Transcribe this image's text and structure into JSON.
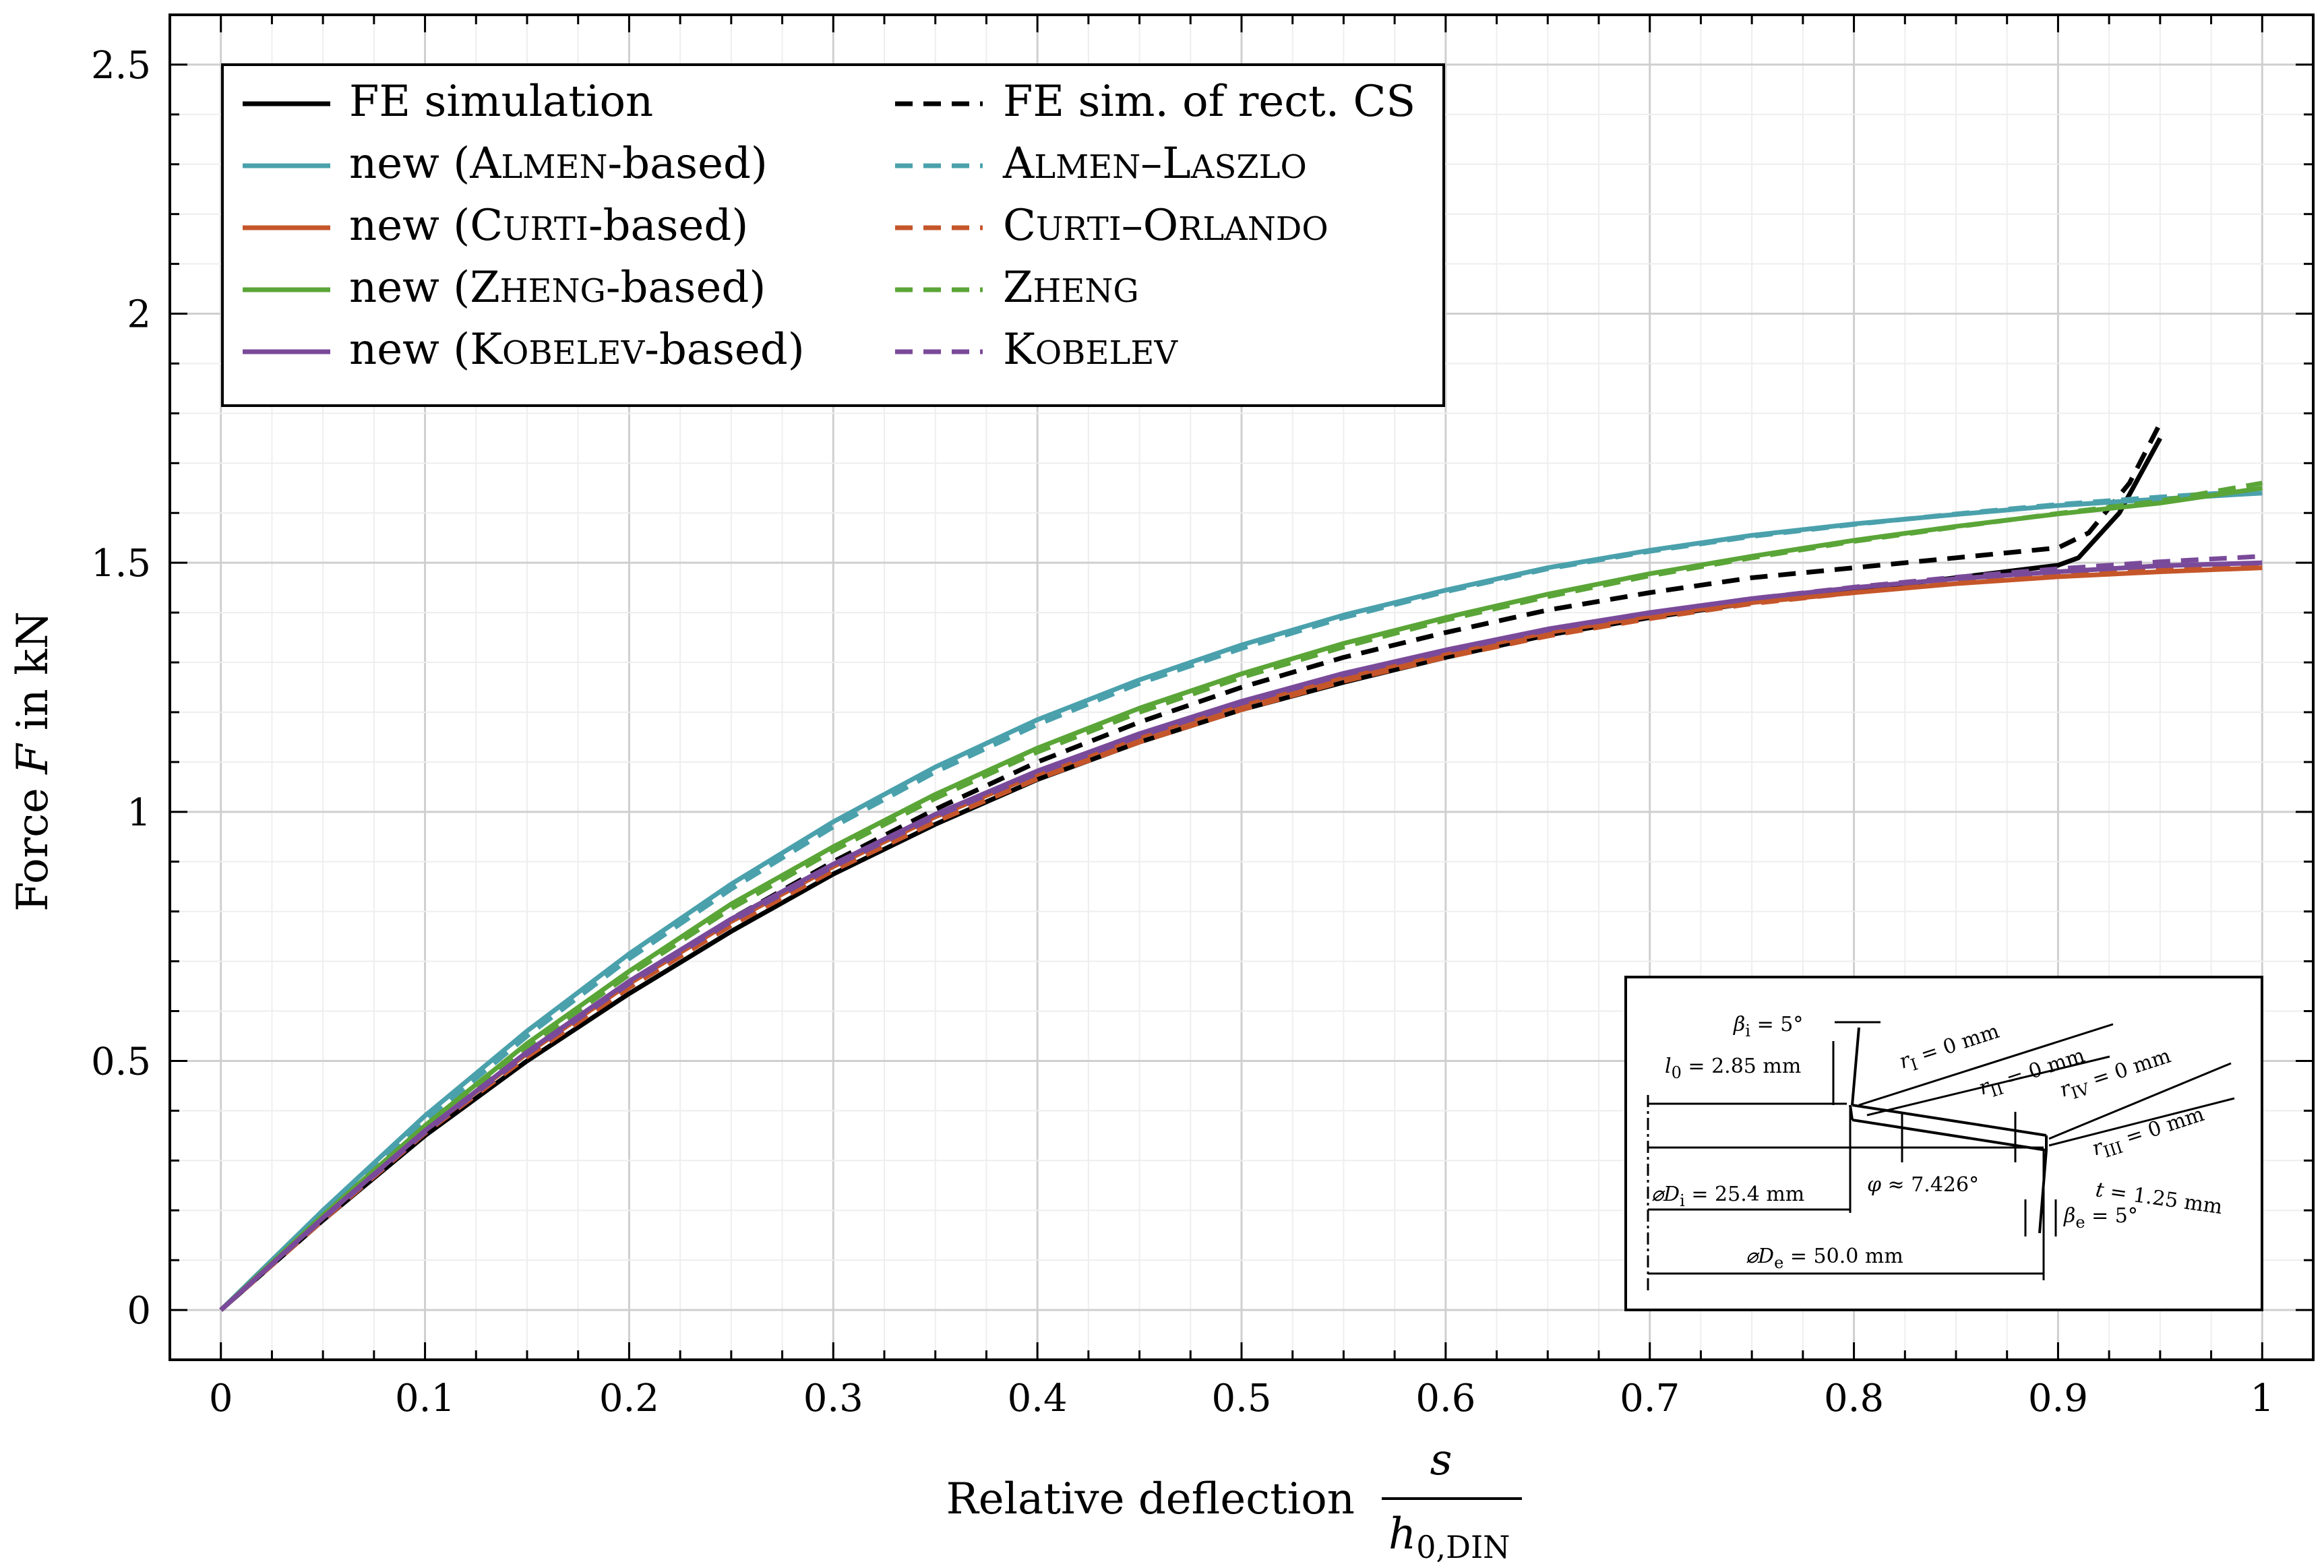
{
  "chart_data": {
    "type": "line",
    "xlabel": "Relative deflection",
    "xlabel_fraction": {
      "numerator": "s",
      "denominator": "h",
      "denominator_subscript": "0,DIN"
    },
    "ylabel": "Force F in kN",
    "ylabel_parts": {
      "prefix": "Force ",
      "variable": "F",
      "suffix": " in kN"
    },
    "xlim": [
      -0.025,
      1.025
    ],
    "ylim": [
      -0.1,
      2.6
    ],
    "x_ticks": [
      0,
      0.1,
      0.2,
      0.3,
      0.4,
      0.5,
      0.6,
      0.7,
      0.8,
      0.9,
      1
    ],
    "x_tick_labels": [
      "0",
      "0.1",
      "0.2",
      "0.3",
      "0.4",
      "0.5",
      "0.6",
      "0.7",
      "0.8",
      "0.9",
      "1"
    ],
    "y_ticks": [
      0,
      0.5,
      1,
      1.5,
      2,
      2.5
    ],
    "y_tick_labels": [
      "0",
      "0.5",
      "1",
      "1.5",
      "2",
      "2.5"
    ],
    "grid": true,
    "legend_position": "top-left",
    "x": [
      0,
      0.05,
      0.1,
      0.15,
      0.2,
      0.25,
      0.3,
      0.35,
      0.4,
      0.45,
      0.5,
      0.55,
      0.6,
      0.65,
      0.7,
      0.75,
      0.8,
      0.85,
      0.9,
      0.95,
      1
    ],
    "series": [
      {
        "name_parts": [
          "FE simulation"
        ],
        "color": "#000000",
        "dash": false,
        "x": [
          0,
          0.05,
          0.1,
          0.15,
          0.2,
          0.25,
          0.3,
          0.35,
          0.4,
          0.45,
          0.5,
          0.55,
          0.6,
          0.65,
          0.7,
          0.75,
          0.8,
          0.85,
          0.9,
          0.91,
          0.93,
          0.95
        ],
        "values": [
          0,
          0.18,
          0.35,
          0.5,
          0.635,
          0.76,
          0.875,
          0.975,
          1.065,
          1.14,
          1.205,
          1.26,
          1.31,
          1.355,
          1.39,
          1.42,
          1.445,
          1.47,
          1.495,
          1.51,
          1.6,
          1.75
        ]
      },
      {
        "name_parts": [
          "FE sim. of rect. CS"
        ],
        "color": "#000000",
        "dash": true,
        "x": [
          0,
          0.05,
          0.1,
          0.15,
          0.2,
          0.25,
          0.3,
          0.35,
          0.4,
          0.45,
          0.5,
          0.55,
          0.6,
          0.65,
          0.7,
          0.75,
          0.8,
          0.85,
          0.9,
          0.915,
          0.935,
          0.95
        ],
        "values": [
          0,
          0.185,
          0.36,
          0.515,
          0.655,
          0.785,
          0.9,
          1.005,
          1.1,
          1.18,
          1.25,
          1.31,
          1.36,
          1.405,
          1.44,
          1.47,
          1.49,
          1.51,
          1.53,
          1.56,
          1.66,
          1.78
        ]
      },
      {
        "name_parts": [
          "new (",
          "Almen",
          "-based)"
        ],
        "color": "#4aa1ac",
        "dash": false,
        "values": [
          0,
          0.2,
          0.39,
          0.56,
          0.715,
          0.855,
          0.98,
          1.09,
          1.185,
          1.265,
          1.335,
          1.395,
          1.445,
          1.49,
          1.525,
          1.555,
          1.578,
          1.597,
          1.615,
          1.628,
          1.64
        ]
      },
      {
        "name_parts": [
          "Almen",
          "–",
          "Laszlo"
        ],
        "color": "#4aa1ac",
        "dash": true,
        "values": [
          0,
          0.195,
          0.38,
          0.55,
          0.705,
          0.845,
          0.97,
          1.08,
          1.175,
          1.258,
          1.328,
          1.39,
          1.442,
          1.488,
          1.523,
          1.553,
          1.577,
          1.598,
          1.617,
          1.632,
          1.645
        ]
      },
      {
        "name_parts": [
          "new (",
          "Curti",
          "-based)"
        ],
        "color": "#c5562a",
        "dash": false,
        "values": [
          0,
          0.185,
          0.36,
          0.515,
          0.655,
          0.78,
          0.89,
          0.99,
          1.075,
          1.15,
          1.215,
          1.27,
          1.318,
          1.36,
          1.393,
          1.42,
          1.44,
          1.458,
          1.472,
          1.482,
          1.49
        ]
      },
      {
        "name_parts": [
          "Curti",
          "–",
          "Orlando"
        ],
        "color": "#c5562a",
        "dash": true,
        "values": [
          0,
          0.18,
          0.355,
          0.508,
          0.647,
          0.772,
          0.882,
          0.98,
          1.066,
          1.14,
          1.205,
          1.262,
          1.31,
          1.353,
          1.388,
          1.418,
          1.44,
          1.459,
          1.475,
          1.487,
          1.497
        ]
      },
      {
        "name_parts": [
          "new (",
          "Zheng",
          "-based)"
        ],
        "color": "#5aa537",
        "dash": false,
        "values": [
          0,
          0.19,
          0.37,
          0.535,
          0.68,
          0.815,
          0.93,
          1.035,
          1.128,
          1.208,
          1.277,
          1.338,
          1.39,
          1.437,
          1.478,
          1.513,
          1.545,
          1.573,
          1.598,
          1.62,
          1.65
        ]
      },
      {
        "name_parts": [
          "Zheng"
        ],
        "color": "#5aa537",
        "dash": true,
        "values": [
          0,
          0.185,
          0.365,
          0.528,
          0.673,
          0.806,
          0.922,
          1.027,
          1.12,
          1.2,
          1.27,
          1.331,
          1.385,
          1.432,
          1.474,
          1.51,
          1.543,
          1.572,
          1.599,
          1.624,
          1.66
        ]
      },
      {
        "name_parts": [
          "new (",
          "Kobelev",
          "-based)"
        ],
        "color": "#7a4a9a",
        "dash": false,
        "values": [
          0,
          0.185,
          0.36,
          0.518,
          0.66,
          0.785,
          0.895,
          0.995,
          1.082,
          1.157,
          1.222,
          1.278,
          1.325,
          1.367,
          1.4,
          1.428,
          1.45,
          1.468,
          1.482,
          1.494,
          1.5
        ]
      },
      {
        "name_parts": [
          "Kobelev"
        ],
        "color": "#7a4a9a",
        "dash": true,
        "values": [
          0,
          0.183,
          0.357,
          0.514,
          0.655,
          0.78,
          0.89,
          0.99,
          1.077,
          1.152,
          1.218,
          1.275,
          1.322,
          1.365,
          1.399,
          1.428,
          1.451,
          1.471,
          1.488,
          1.502,
          1.513
        ]
      }
    ],
    "inset": {
      "beta_i": [
        "β",
        "i",
        " = 5°"
      ],
      "beta_e": [
        "β",
        "e",
        " = 5°"
      ],
      "l0": [
        "l",
        "0",
        " = 2.85 mm"
      ],
      "rI": [
        "r",
        "I",
        " = 0 mm"
      ],
      "rII": [
        "r",
        "II",
        " = 0 mm"
      ],
      "rIII": [
        "r",
        "III",
        " = 0 mm"
      ],
      "rIV": [
        "r",
        "IV",
        " = 0 mm"
      ],
      "phi": [
        "φ",
        "",
        " ≈ 7.426°"
      ],
      "t": [
        "t",
        "",
        " = 1.25 mm"
      ],
      "Di": [
        "⌀D",
        "i",
        " = 25.4 mm"
      ],
      "De": [
        "⌀D",
        "e",
        " = 50.0 mm"
      ]
    }
  }
}
